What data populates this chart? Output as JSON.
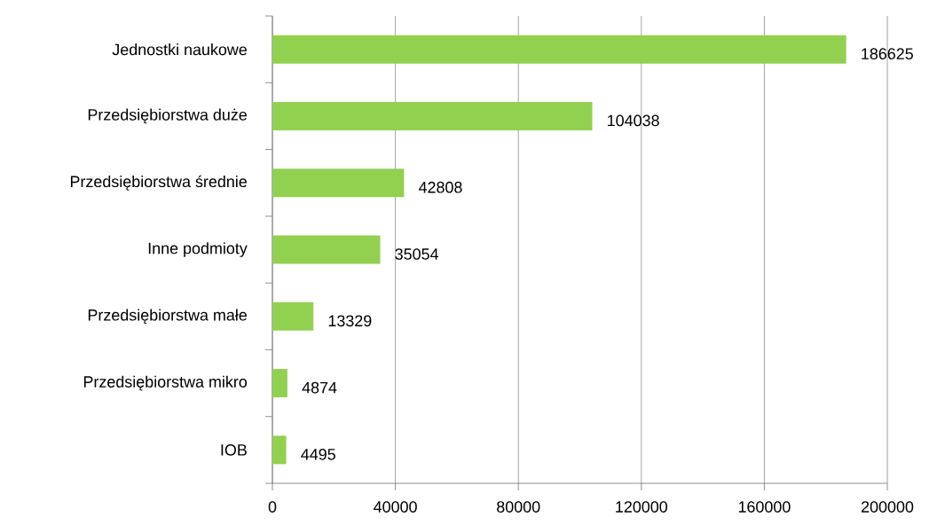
{
  "chart_data": {
    "type": "bar",
    "orientation": "horizontal",
    "categories": [
      "Jednostki naukowe",
      "Przedsiębiorstwa duże",
      "Przedsiębiorstwa średnie",
      "Inne podmioty",
      "Przedsiębiorstwa małe",
      "Przedsiębiorstwa mikro",
      "IOB"
    ],
    "values": [
      186625,
      104038,
      42808,
      35054,
      13329,
      4874,
      4495
    ],
    "color": "#92d050",
    "xlim": [
      0,
      200000
    ],
    "xticks": [
      0,
      40000,
      80000,
      120000,
      160000,
      200000
    ],
    "grid": "x",
    "data_labels": true
  }
}
